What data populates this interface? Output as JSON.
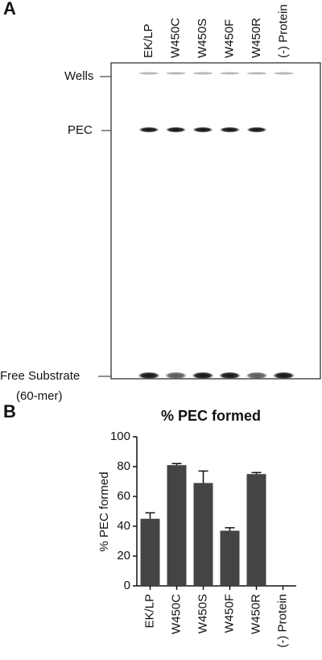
{
  "panel_a": {
    "label": "A",
    "lanes": [
      "EK/LP",
      "W450C",
      "W450S",
      "W450F",
      "W450R",
      "(-) Protein"
    ],
    "markers": [
      "Wells",
      "PEC"
    ],
    "free_substrate": [
      "Free Substrate",
      "(60-mer)"
    ]
  },
  "chart_data": {
    "type": "bar",
    "panel_label": "B",
    "title": "% PEC formed",
    "y_label": "% PEC formed",
    "categories": [
      "EK/LP",
      "W450C",
      "W450S",
      "W450F",
      "W450R",
      "(-) Protein"
    ],
    "values": [
      45,
      81,
      69,
      37,
      75,
      0
    ],
    "errors": [
      4,
      1,
      8,
      2,
      1,
      0
    ],
    "color": "#444444",
    "ylim": [
      0,
      100
    ],
    "yticks": [
      0,
      20,
      40,
      60,
      80,
      100
    ],
    "grid": false
  }
}
